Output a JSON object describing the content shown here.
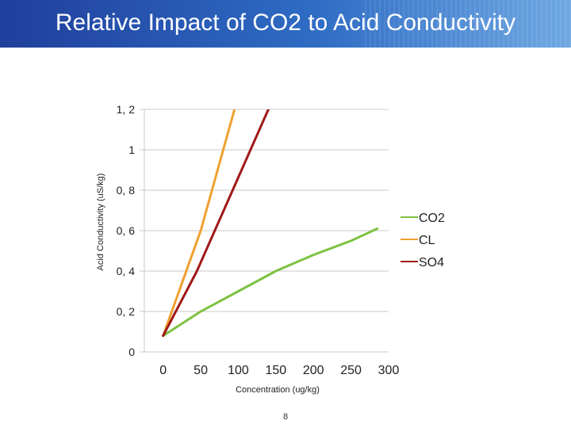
{
  "slide": {
    "title": "Relative Impact of CO2 to Acid Conductivity",
    "page_number": "8"
  },
  "chart_data": {
    "type": "line",
    "title": "",
    "xlabel": "Concentration (ug/kg)",
    "ylabel": "Acid Conductivity (uS/kg)",
    "x_tick_labels": [
      "0",
      "50",
      "100",
      "150",
      "200",
      "250",
      "300"
    ],
    "y_tick_labels": [
      "0",
      "0, 2",
      "0, 4",
      "0, 6",
      "0, 8",
      "1",
      "1, 2"
    ],
    "y_ticks": [
      0,
      0.2,
      0.4,
      0.6,
      0.8,
      1,
      1.2
    ],
    "xlim": [
      -25,
      300
    ],
    "ylim": [
      0,
      1.2
    ],
    "grid": true,
    "legend_position": "right",
    "series": [
      {
        "name": "CO2",
        "color": "#7dc242",
        "points": [
          [
            0,
            0.08
          ],
          [
            50,
            0.2
          ],
          [
            100,
            0.3
          ],
          [
            150,
            0.4
          ],
          [
            200,
            0.48
          ],
          [
            250,
            0.55
          ],
          [
            285,
            0.61
          ]
        ]
      },
      {
        "name": "CL",
        "color": "#f0a030",
        "points": [
          [
            0,
            0.08
          ],
          [
            50,
            0.6
          ],
          [
            95,
            1.2
          ]
        ]
      },
      {
        "name": "SO4",
        "color": "#a01818",
        "points": [
          [
            0,
            0.08
          ],
          [
            45,
            0.4
          ],
          [
            140,
            1.2
          ]
        ]
      }
    ]
  }
}
